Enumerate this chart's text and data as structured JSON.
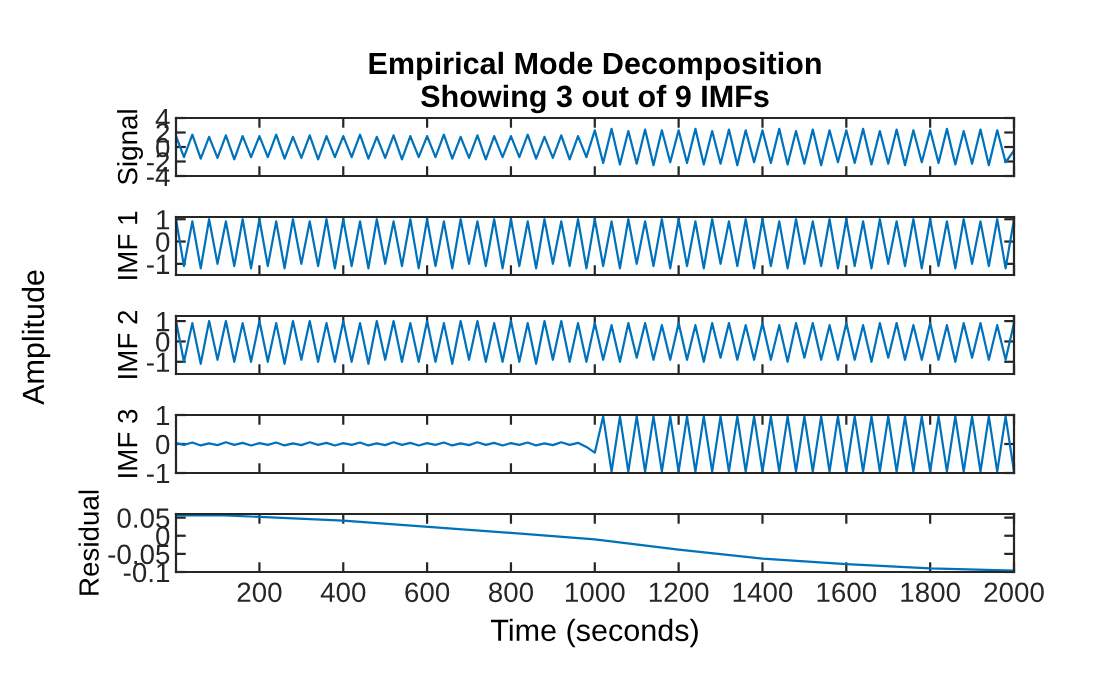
{
  "chart_data": [
    {
      "type": "line",
      "title": "Empirical Mode Decomposition\nShowing 3 out of 9 IMFs",
      "ylabel": "Signal",
      "tick_labels": "y",
      "xlim": [
        1,
        2000
      ],
      "xticks": [
        200,
        400,
        600,
        800,
        1000,
        1200,
        1400,
        1600,
        1800,
        2000
      ],
      "ylim": [
        -4,
        4
      ],
      "yticks": [
        -4,
        -2,
        0,
        2,
        4
      ],
      "x": [
        1,
        20,
        40,
        60,
        80,
        100,
        120,
        140,
        160,
        180,
        200,
        220,
        240,
        260,
        280,
        300,
        320,
        340,
        360,
        380,
        400,
        420,
        440,
        460,
        480,
        500,
        520,
        540,
        560,
        580,
        600,
        620,
        640,
        660,
        680,
        700,
        720,
        740,
        760,
        780,
        800,
        820,
        840,
        860,
        880,
        900,
        920,
        940,
        960,
        980,
        1000,
        1020,
        1040,
        1060,
        1080,
        1100,
        1120,
        1140,
        1160,
        1180,
        1200,
        1220,
        1240,
        1260,
        1280,
        1300,
        1320,
        1340,
        1360,
        1380,
        1400,
        1420,
        1440,
        1460,
        1480,
        1500,
        1520,
        1540,
        1560,
        1580,
        1600,
        1620,
        1640,
        1660,
        1680,
        1700,
        1720,
        1740,
        1760,
        1780,
        1800,
        1820,
        1840,
        1860,
        1880,
        1900,
        1920,
        1940,
        1960,
        1980,
        2000
      ],
      "series": [
        {
          "color": "#0072bd",
          "values": [
            1.5,
            -1.4,
            1.7,
            -1.6,
            1.4,
            -1.5,
            1.6,
            -1.7,
            1.5,
            -1.4,
            1.5,
            -1.4,
            1.7,
            -1.6,
            1.4,
            -1.5,
            1.6,
            -1.7,
            1.5,
            -1.4,
            1.5,
            -1.4,
            1.7,
            -1.6,
            1.4,
            -1.5,
            1.6,
            -1.7,
            1.5,
            -1.4,
            1.5,
            -1.4,
            1.7,
            -1.6,
            1.4,
            -1.5,
            1.6,
            -1.7,
            1.5,
            -1.4,
            1.5,
            -1.4,
            1.7,
            -1.6,
            1.4,
            -1.5,
            1.6,
            -1.7,
            1.5,
            -1.4,
            2.3,
            -2.2,
            2.5,
            -2.4,
            2.2,
            -2.3,
            2.4,
            -2.5,
            2.3,
            -2.1,
            2.3,
            -2.2,
            2.5,
            -2.4,
            2.2,
            -2.3,
            2.4,
            -2.5,
            2.3,
            -2.1,
            2.3,
            -2.2,
            2.5,
            -2.4,
            2.2,
            -2.3,
            2.4,
            -2.5,
            2.3,
            -2.1,
            2.3,
            -2.2,
            2.5,
            -2.4,
            2.2,
            -2.3,
            2.4,
            -2.5,
            2.3,
            -2.1,
            2.3,
            -2.2,
            2.5,
            -2.4,
            2.2,
            -2.3,
            2.4,
            -2.5,
            2.3,
            -2.1,
            -0.5
          ]
        }
      ]
    },
    {
      "type": "line",
      "ylabel": "IMF 1",
      "tick_labels": "y",
      "xlim": [
        1,
        2000
      ],
      "xticks": [
        200,
        400,
        600,
        800,
        1000,
        1200,
        1400,
        1600,
        1800,
        2000
      ],
      "ylim": [
        -1.5,
        1.1
      ],
      "yticks": [
        -1,
        0,
        1
      ],
      "x": [
        1,
        20,
        40,
        60,
        80,
        100,
        120,
        140,
        160,
        180,
        200,
        220,
        240,
        260,
        280,
        300,
        320,
        340,
        360,
        380,
        400,
        420,
        440,
        460,
        480,
        500,
        520,
        540,
        560,
        580,
        600,
        620,
        640,
        660,
        680,
        700,
        720,
        740,
        760,
        780,
        800,
        820,
        840,
        860,
        880,
        900,
        920,
        940,
        960,
        980,
        1000,
        1020,
        1040,
        1060,
        1080,
        1100,
        1120,
        1140,
        1160,
        1180,
        1200,
        1220,
        1240,
        1260,
        1280,
        1300,
        1320,
        1340,
        1360,
        1380,
        1400,
        1420,
        1440,
        1460,
        1480,
        1500,
        1520,
        1540,
        1560,
        1580,
        1600,
        1620,
        1640,
        1660,
        1680,
        1700,
        1720,
        1740,
        1760,
        1780,
        1800,
        1820,
        1840,
        1860,
        1880,
        1900,
        1920,
        1940,
        1960,
        1980,
        2000
      ],
      "series": [
        {
          "color": "#0072bd",
          "values": [
            1.0,
            -1.1,
            0.9,
            -1.2,
            1.0,
            -1.0,
            0.9,
            -1.1,
            1.0,
            -1.2,
            1.0,
            -1.1,
            0.9,
            -1.2,
            1.0,
            -1.0,
            0.9,
            -1.1,
            1.0,
            -1.2,
            1.0,
            -1.1,
            0.9,
            -1.2,
            1.0,
            -1.0,
            0.9,
            -1.1,
            1.0,
            -1.2,
            1.0,
            -1.1,
            0.9,
            -1.2,
            1.0,
            -1.0,
            0.9,
            -1.1,
            1.0,
            -1.2,
            1.0,
            -1.1,
            0.9,
            -1.2,
            1.0,
            -1.0,
            0.9,
            -1.1,
            1.0,
            -1.2,
            1.0,
            -1.1,
            0.9,
            -1.2,
            1.0,
            -1.0,
            0.9,
            -1.1,
            1.0,
            -1.2,
            1.0,
            -1.1,
            0.9,
            -1.2,
            1.0,
            -1.0,
            0.9,
            -1.1,
            1.0,
            -1.2,
            1.0,
            -1.1,
            0.9,
            -1.2,
            1.0,
            -1.0,
            0.9,
            -1.1,
            1.0,
            -1.2,
            1.0,
            -1.1,
            0.9,
            -1.2,
            1.0,
            -1.0,
            0.9,
            -1.1,
            1.0,
            -1.2,
            1.0,
            -1.1,
            0.9,
            -1.2,
            1.0,
            -1.0,
            0.9,
            -1.1,
            1.0,
            -1.2,
            1.0
          ]
        }
      ]
    },
    {
      "type": "line",
      "ylabel": "IMF 2",
      "tick_labels": "y",
      "annotations": [
        "Amplitude"
      ],
      "xlim": [
        1,
        2000
      ],
      "xticks": [
        200,
        400,
        600,
        800,
        1000,
        1200,
        1400,
        1600,
        1800,
        2000
      ],
      "ylim": [
        -1.6,
        1.25
      ],
      "yticks": [
        -1,
        0,
        1
      ],
      "x": [
        1,
        20,
        40,
        60,
        80,
        100,
        120,
        140,
        160,
        180,
        200,
        220,
        240,
        260,
        280,
        300,
        320,
        340,
        360,
        380,
        400,
        420,
        440,
        460,
        480,
        500,
        520,
        540,
        560,
        580,
        600,
        620,
        640,
        660,
        680,
        700,
        720,
        740,
        760,
        780,
        800,
        820,
        840,
        860,
        880,
        900,
        920,
        940,
        960,
        980,
        1000,
        1020,
        1040,
        1060,
        1080,
        1100,
        1120,
        1140,
        1160,
        1180,
        1200,
        1220,
        1240,
        1260,
        1280,
        1300,
        1320,
        1340,
        1360,
        1380,
        1400,
        1420,
        1440,
        1460,
        1480,
        1500,
        1520,
        1540,
        1560,
        1580,
        1600,
        1620,
        1640,
        1660,
        1680,
        1700,
        1720,
        1740,
        1760,
        1780,
        1800,
        1820,
        1840,
        1860,
        1880,
        1900,
        1920,
        1940,
        1960,
        1980,
        2000
      ],
      "series": [
        {
          "color": "#0072bd",
          "values": [
            1.0,
            -1.0,
            0.9,
            -1.1,
            1.0,
            -0.9,
            1.0,
            -1.0,
            0.9,
            -1.0,
            1.0,
            -1.0,
            0.9,
            -1.1,
            1.0,
            -0.9,
            1.0,
            -1.0,
            0.9,
            -1.0,
            1.0,
            -1.0,
            0.9,
            -1.1,
            1.0,
            -0.9,
            1.0,
            -1.0,
            0.9,
            -1.0,
            1.0,
            -1.0,
            0.9,
            -1.1,
            1.0,
            -0.9,
            1.0,
            -1.0,
            0.9,
            -1.0,
            1.0,
            -1.0,
            0.9,
            -1.1,
            1.0,
            -0.9,
            1.0,
            -1.0,
            0.9,
            -1.0,
            0.9,
            -0.9,
            0.8,
            -1.0,
            0.9,
            -0.8,
            0.9,
            -0.9,
            0.8,
            -0.9,
            0.9,
            -0.9,
            0.8,
            -1.0,
            0.9,
            -0.8,
            0.9,
            -0.9,
            0.8,
            -0.9,
            0.9,
            -0.9,
            0.8,
            -1.0,
            0.9,
            -0.8,
            0.9,
            -0.9,
            0.8,
            -0.9,
            0.9,
            -0.9,
            0.8,
            -1.0,
            0.9,
            -0.8,
            0.9,
            -0.9,
            0.8,
            -0.9,
            0.9,
            -0.9,
            0.8,
            -1.0,
            0.9,
            -0.8,
            0.9,
            -0.9,
            0.8,
            -0.9,
            0.9
          ]
        }
      ]
    },
    {
      "type": "line",
      "ylabel": "IMF 3",
      "tick_labels": "y",
      "xlim": [
        1,
        2000
      ],
      "xticks": [
        200,
        400,
        600,
        800,
        1000,
        1200,
        1400,
        1600,
        1800,
        2000
      ],
      "ylim": [
        -1,
        1
      ],
      "yticks": [
        -1,
        0,
        1
      ],
      "x": [
        1,
        20,
        40,
        60,
        80,
        100,
        120,
        140,
        160,
        180,
        200,
        220,
        240,
        260,
        280,
        300,
        320,
        340,
        360,
        380,
        400,
        420,
        440,
        460,
        480,
        500,
        520,
        540,
        560,
        580,
        600,
        620,
        640,
        660,
        680,
        700,
        720,
        740,
        760,
        780,
        800,
        820,
        840,
        860,
        880,
        900,
        920,
        940,
        960,
        980,
        1000,
        1020,
        1040,
        1060,
        1080,
        1100,
        1120,
        1140,
        1160,
        1180,
        1200,
        1220,
        1240,
        1260,
        1280,
        1300,
        1320,
        1340,
        1360,
        1380,
        1400,
        1420,
        1440,
        1460,
        1480,
        1500,
        1520,
        1540,
        1560,
        1580,
        1600,
        1620,
        1640,
        1660,
        1680,
        1700,
        1720,
        1740,
        1760,
        1780,
        1800,
        1820,
        1840,
        1860,
        1880,
        1900,
        1920,
        1940,
        1960,
        1980,
        2000
      ],
      "series": [
        {
          "color": "#0072bd",
          "values": [
            0.03,
            -0.03,
            0.05,
            -0.05,
            0.02,
            -0.04,
            0.06,
            -0.03,
            0.04,
            -0.05,
            0.03,
            -0.03,
            0.05,
            -0.05,
            0.02,
            -0.04,
            0.06,
            -0.03,
            0.04,
            -0.05,
            0.03,
            -0.03,
            0.05,
            -0.05,
            0.02,
            -0.04,
            0.06,
            -0.03,
            0.04,
            -0.05,
            0.03,
            -0.03,
            0.05,
            -0.05,
            0.02,
            -0.04,
            0.06,
            -0.03,
            0.04,
            -0.05,
            0.03,
            -0.03,
            0.05,
            -0.05,
            0.02,
            -0.04,
            0.06,
            -0.03,
            0.04,
            -0.1,
            -0.3,
            0.95,
            -0.95,
            0.95,
            -0.95,
            0.95,
            -0.95,
            0.95,
            -0.95,
            0.95,
            -0.95,
            0.95,
            -0.95,
            0.95,
            -0.95,
            0.95,
            -0.95,
            0.95,
            -0.95,
            0.95,
            -0.95,
            0.95,
            -0.95,
            0.95,
            -0.95,
            0.95,
            -0.95,
            0.95,
            -0.95,
            0.95,
            -0.95,
            0.95,
            -0.95,
            0.95,
            -0.95,
            0.95,
            -0.95,
            0.95,
            -0.95,
            0.95,
            -0.95,
            0.95,
            -0.95,
            0.95,
            -0.95,
            0.95,
            -0.95,
            0.95,
            -0.95,
            0.95,
            -0.95
          ]
        }
      ]
    },
    {
      "type": "line",
      "ylabel": "Residual",
      "xlabel": "Time (seconds)",
      "xlim": [
        1,
        2000
      ],
      "xticks": [
        200,
        400,
        600,
        800,
        1000,
        1200,
        1400,
        1600,
        1800,
        2000
      ],
      "ylim": [
        -0.1,
        0.06
      ],
      "yticks": [
        -0.1,
        -0.05,
        0,
        0.05
      ],
      "x": [
        1,
        100,
        400,
        800,
        1000,
        1200,
        1400,
        1600,
        1800,
        2000
      ],
      "series": [
        {
          "color": "#0072bd",
          "values": [
            0.056,
            0.057,
            0.042,
            0.008,
            -0.01,
            -0.038,
            -0.063,
            -0.078,
            -0.09,
            -0.096
          ]
        }
      ]
    }
  ]
}
